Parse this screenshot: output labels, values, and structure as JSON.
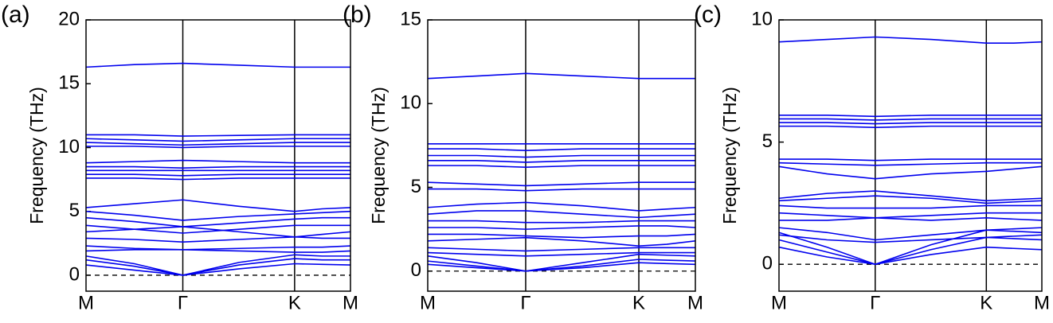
{
  "chart_data": [
    {
      "type": "line",
      "title": "(a)",
      "ylabel": "Frequency (THz)",
      "x": [
        0,
        0.5,
        1,
        1.58,
        2.155,
        2.44,
        2.732
      ],
      "xlim": [
        0,
        2.732
      ],
      "xticks": [
        {
          "value": 0,
          "label": "M"
        },
        {
          "value": 1,
          "label": "Γ"
        },
        {
          "value": 2.155,
          "label": "K"
        },
        {
          "value": 2.732,
          "label": "M"
        }
      ],
      "ylim": [
        -1.25,
        20
      ],
      "yticks": [
        0,
        5,
        10,
        15,
        20
      ],
      "xgrid": true,
      "reference_line": 0,
      "color": "#0000ee",
      "series": [
        {
          "values": [
            16.3,
            16.5,
            16.6,
            16.45,
            16.3,
            16.3,
            16.3
          ]
        },
        {
          "values": [
            11.0,
            11.0,
            10.9,
            10.95,
            11.0,
            11.0,
            11.0
          ]
        },
        {
          "values": [
            10.7,
            10.6,
            10.5,
            10.6,
            10.7,
            10.7,
            10.7
          ]
        },
        {
          "values": [
            10.4,
            10.3,
            10.2,
            10.3,
            10.4,
            10.4,
            10.4
          ]
        },
        {
          "values": [
            10.1,
            10.1,
            10.0,
            10.1,
            10.1,
            10.1,
            10.1
          ]
        },
        {
          "values": [
            8.8,
            8.9,
            9.0,
            8.9,
            8.8,
            8.8,
            8.8
          ]
        },
        {
          "values": [
            8.5,
            8.5,
            8.4,
            8.5,
            8.5,
            8.5,
            8.5
          ]
        },
        {
          "values": [
            8.2,
            8.2,
            8.2,
            8.2,
            8.2,
            8.2,
            8.2
          ]
        },
        {
          "values": [
            7.9,
            7.9,
            7.8,
            7.9,
            7.9,
            7.9,
            7.9
          ]
        },
        {
          "values": [
            7.6,
            7.6,
            7.5,
            7.6,
            7.6,
            7.6,
            7.6
          ]
        },
        {
          "values": [
            5.3,
            5.6,
            5.9,
            5.4,
            5.0,
            5.2,
            5.3
          ]
        },
        {
          "values": [
            5.0,
            4.7,
            4.3,
            4.6,
            4.8,
            4.9,
            5.0
          ]
        },
        {
          "values": [
            4.5,
            4.2,
            3.8,
            4.1,
            4.4,
            4.5,
            4.5
          ]
        },
        {
          "values": [
            3.9,
            3.6,
            3.3,
            3.6,
            3.9,
            3.9,
            3.9
          ]
        },
        {
          "values": [
            3.4,
            3.6,
            3.8,
            3.4,
            3.0,
            3.2,
            3.4
          ]
        },
        {
          "values": [
            2.9,
            2.8,
            2.6,
            2.8,
            3.0,
            2.9,
            2.9
          ]
        },
        {
          "values": [
            2.3,
            2.1,
            2.0,
            2.1,
            2.2,
            2.2,
            2.3
          ]
        },
        {
          "values": [
            1.9,
            2.0,
            2.0,
            1.9,
            1.8,
            1.8,
            1.9
          ]
        },
        {
          "values": [
            1.5,
            0.9,
            0,
            1.0,
            1.6,
            1.5,
            1.5
          ]
        },
        {
          "values": [
            1.2,
            0.7,
            0,
            0.8,
            1.3,
            1.2,
            1.2
          ]
        },
        {
          "values": [
            0.8,
            0.4,
            0,
            0.5,
            0.9,
            0.85,
            0.8
          ]
        }
      ]
    },
    {
      "type": "line",
      "title": "(b)",
      "ylabel": "Frequency (THz)",
      "x": [
        0,
        0.5,
        1,
        1.58,
        2.155,
        2.44,
        2.732
      ],
      "xlim": [
        0,
        2.732
      ],
      "xticks": [
        {
          "value": 0,
          "label": "M"
        },
        {
          "value": 1,
          "label": "Γ"
        },
        {
          "value": 2.155,
          "label": "K"
        },
        {
          "value": 2.732,
          "label": "M"
        }
      ],
      "ylim": [
        -1.2,
        15
      ],
      "yticks": [
        0,
        5,
        10,
        15
      ],
      "xgrid": true,
      "reference_line": 0,
      "color": "#0000ee",
      "series": [
        {
          "values": [
            11.5,
            11.65,
            11.8,
            11.65,
            11.5,
            11.5,
            11.5
          ]
        },
        {
          "values": [
            7.6,
            7.6,
            7.6,
            7.6,
            7.6,
            7.6,
            7.6
          ]
        },
        {
          "values": [
            7.3,
            7.3,
            7.2,
            7.3,
            7.3,
            7.3,
            7.3
          ]
        },
        {
          "values": [
            6.9,
            6.9,
            6.8,
            6.9,
            6.9,
            6.9,
            6.9
          ]
        },
        {
          "values": [
            6.6,
            6.6,
            6.5,
            6.6,
            6.6,
            6.6,
            6.6
          ]
        },
        {
          "values": [
            6.3,
            6.3,
            6.2,
            6.3,
            6.3,
            6.3,
            6.3
          ]
        },
        {
          "values": [
            5.3,
            5.2,
            5.1,
            5.2,
            5.3,
            5.3,
            5.3
          ]
        },
        {
          "values": [
            4.9,
            4.9,
            4.8,
            4.9,
            4.9,
            4.9,
            4.9
          ]
        },
        {
          "values": [
            3.8,
            4.0,
            4.1,
            3.9,
            3.6,
            3.7,
            3.8
          ]
        },
        {
          "values": [
            3.4,
            3.6,
            3.6,
            3.4,
            3.2,
            3.3,
            3.4
          ]
        },
        {
          "values": [
            3.0,
            3.0,
            2.9,
            2.9,
            3.0,
            3.0,
            3.0
          ]
        },
        {
          "values": [
            2.6,
            2.6,
            2.5,
            2.6,
            2.7,
            2.7,
            2.6
          ]
        },
        {
          "values": [
            2.2,
            2.2,
            2.1,
            2.0,
            2.1,
            2.1,
            2.2
          ]
        },
        {
          "values": [
            1.8,
            1.9,
            2.0,
            1.8,
            1.5,
            1.6,
            1.8
          ]
        },
        {
          "values": [
            1.4,
            1.3,
            1.2,
            1.3,
            1.4,
            1.4,
            1.4
          ]
        },
        {
          "values": [
            1.1,
            1.0,
            0.9,
            1.0,
            1.1,
            1.1,
            1.1
          ]
        },
        {
          "values": [
            0.9,
            0.5,
            0,
            0.5,
            1.0,
            0.95,
            0.9
          ]
        },
        {
          "values": [
            0.6,
            0.3,
            0,
            0.3,
            0.7,
            0.65,
            0.6
          ]
        },
        {
          "values": [
            0.4,
            0.2,
            0,
            0.2,
            0.5,
            0.45,
            0.4
          ]
        }
      ]
    },
    {
      "type": "line",
      "title": "(c)",
      "ylabel": "Frequency (THz)",
      "x": [
        0,
        0.5,
        1,
        1.58,
        2.155,
        2.44,
        2.732
      ],
      "xlim": [
        0,
        2.732
      ],
      "xticks": [
        {
          "value": 0,
          "label": "M"
        },
        {
          "value": 1,
          "label": "Γ"
        },
        {
          "value": 2.155,
          "label": "K"
        },
        {
          "value": 2.732,
          "label": "M"
        }
      ],
      "ylim": [
        -1.1,
        10
      ],
      "yticks": [
        0,
        5,
        10
      ],
      "xgrid": true,
      "reference_line": 0,
      "color": "#0000ee",
      "series": [
        {
          "values": [
            9.1,
            9.2,
            9.3,
            9.2,
            9.05,
            9.05,
            9.1
          ]
        },
        {
          "values": [
            6.1,
            6.1,
            6.05,
            6.1,
            6.1,
            6.1,
            6.1
          ]
        },
        {
          "values": [
            5.95,
            5.95,
            5.9,
            5.95,
            5.95,
            5.95,
            5.95
          ]
        },
        {
          "values": [
            5.8,
            5.8,
            5.75,
            5.8,
            5.8,
            5.8,
            5.8
          ]
        },
        {
          "values": [
            5.65,
            5.65,
            5.6,
            5.65,
            5.65,
            5.65,
            5.65
          ]
        },
        {
          "values": [
            4.3,
            4.3,
            4.25,
            4.3,
            4.3,
            4.3,
            4.3
          ]
        },
        {
          "values": [
            4.15,
            4.1,
            4.05,
            4.1,
            4.15,
            4.15,
            4.15
          ]
        },
        {
          "values": [
            4.0,
            3.7,
            3.5,
            3.7,
            3.8,
            3.9,
            4.0
          ]
        },
        {
          "values": [
            2.7,
            2.9,
            3.0,
            2.8,
            2.6,
            2.65,
            2.7
          ]
        },
        {
          "values": [
            2.6,
            2.7,
            2.8,
            2.7,
            2.5,
            2.55,
            2.6
          ]
        },
        {
          "values": [
            2.4,
            2.3,
            2.3,
            2.3,
            2.4,
            2.4,
            2.4
          ]
        },
        {
          "values": [
            2.1,
            2.0,
            1.9,
            2.0,
            2.1,
            2.1,
            2.1
          ]
        },
        {
          "values": [
            1.8,
            1.8,
            1.9,
            1.8,
            1.9,
            1.85,
            1.8
          ]
        },
        {
          "values": [
            1.5,
            1.3,
            1.0,
            1.2,
            1.4,
            1.45,
            1.5
          ]
        },
        {
          "values": [
            1.2,
            1.0,
            0.9,
            1.0,
            1.1,
            1.15,
            1.2
          ]
        },
        {
          "values": [
            1.3,
            0.7,
            0,
            0.8,
            1.4,
            1.35,
            1.3
          ]
        },
        {
          "values": [
            1.0,
            0.5,
            0,
            0.6,
            1.1,
            1.05,
            1.0
          ]
        },
        {
          "values": [
            0.7,
            0.3,
            0,
            0.4,
            0.7,
            0.65,
            0.6
          ]
        }
      ]
    }
  ]
}
